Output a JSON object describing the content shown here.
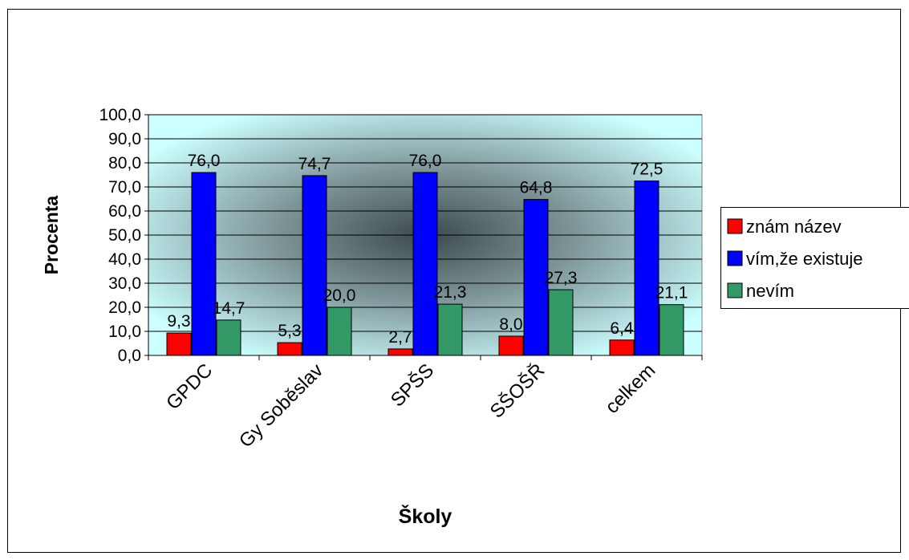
{
  "chart_data": {
    "type": "bar",
    "title": "",
    "xlabel": "Školy",
    "ylabel": "Procenta",
    "ylim": [
      0,
      100
    ],
    "yticks": [
      "0,0",
      "10,0",
      "20,0",
      "30,0",
      "40,0",
      "50,0",
      "60,0",
      "70,0",
      "80,0",
      "90,0",
      "100,0"
    ],
    "categories": [
      "GPDC",
      "Gy Soběslav",
      "SPŠS",
      "SŠOŠŘ",
      "celkem"
    ],
    "series": [
      {
        "name": "znám název",
        "values": [
          9.3,
          5.3,
          2.7,
          8.0,
          6.4
        ],
        "labels": [
          "9,3",
          "5,3",
          "2,7",
          "8,0",
          "6,4"
        ],
        "color": "#ff0000"
      },
      {
        "name": "vím,že existuje",
        "values": [
          76.0,
          74.7,
          76.0,
          64.8,
          72.5
        ],
        "labels": [
          "76,0",
          "74,7",
          "76,0",
          "64,8",
          "72,5"
        ],
        "color": "#0000ff"
      },
      {
        "name": "nevím",
        "values": [
          14.7,
          20.0,
          21.3,
          27.3,
          21.1
        ],
        "labels": [
          "14,7",
          "20,0",
          "21,3",
          "27,3",
          "21,1"
        ],
        "color": "#339966"
      }
    ],
    "grid": true,
    "legend_position": "right",
    "plot_background": "radial gradient, light cyan edges to dark grey centre"
  }
}
